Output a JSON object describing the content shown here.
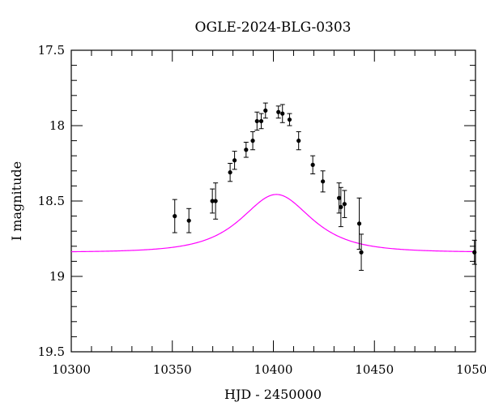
{
  "chart_data": {
    "type": "scatter",
    "title": "OGLE-2024-BLG-0303",
    "xlabel": "HJD - 2450000",
    "ylabel": "I magnitude",
    "xlim": [
      10300,
      10500
    ],
    "ylim": [
      17.5,
      19.5
    ],
    "y_inverted": true,
    "grid": false,
    "x_ticks": [
      10300,
      10350,
      10400,
      10450,
      10500
    ],
    "y_ticks": [
      17.5,
      18,
      18.5,
      19,
      19.5
    ],
    "x_tick_labels": [
      "10300",
      "10350",
      "10400",
      "10450",
      "10500"
    ],
    "y_tick_labels": [
      "17.5",
      "18",
      "18.5",
      "19",
      "19.5"
    ],
    "points_color": "#000000",
    "model_color": "#ff00ff",
    "series": [
      {
        "kind": "observations",
        "x": [
          10351.2,
          10358.2,
          10369.8,
          10371.4,
          10378.6,
          10380.8,
          10386.5,
          10389.8,
          10391.9,
          10394.0,
          10396.1,
          10402.5,
          10404.5,
          10408.0,
          10412.5,
          10419.5,
          10424.5,
          10432.5,
          10433.4,
          10435.2,
          10442.5,
          10443.5,
          10499.5
        ],
        "y": [
          18.6,
          18.63,
          18.5,
          18.5,
          18.31,
          18.23,
          18.16,
          18.1,
          17.97,
          17.97,
          17.9,
          17.91,
          17.92,
          17.96,
          18.1,
          18.26,
          18.37,
          18.48,
          18.54,
          18.52,
          18.65,
          18.84,
          18.84
        ],
        "err": [
          0.11,
          0.08,
          0.08,
          0.12,
          0.06,
          0.06,
          0.05,
          0.06,
          0.06,
          0.05,
          0.05,
          0.04,
          0.06,
          0.04,
          0.06,
          0.06,
          0.07,
          0.1,
          0.13,
          0.09,
          0.17,
          0.12,
          0.08
        ]
      },
      {
        "kind": "model",
        "curve": "point-lens",
        "t0": 10401.5,
        "tE": 22,
        "u0": 0.9,
        "baseline": 18.84
      }
    ]
  }
}
